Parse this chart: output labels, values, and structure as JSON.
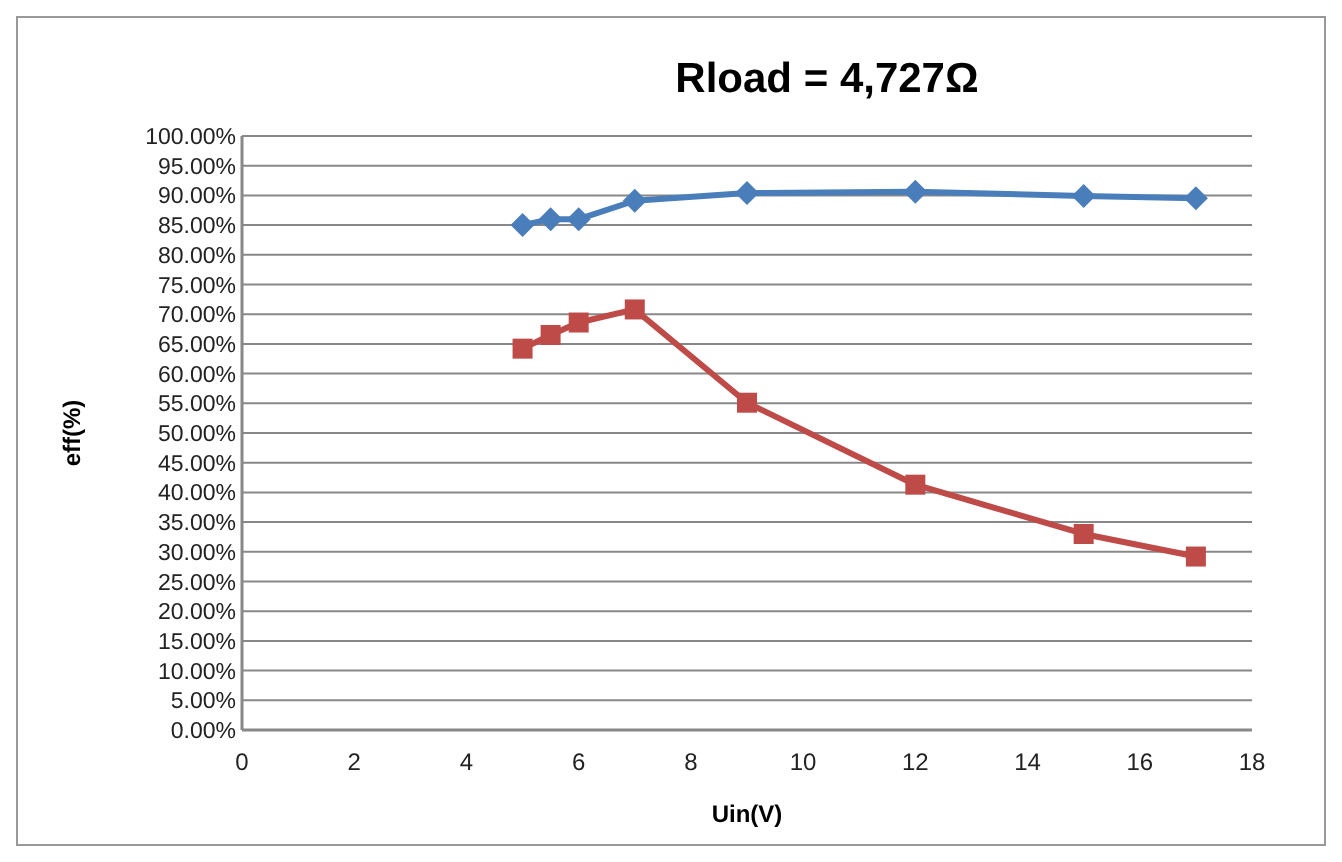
{
  "chart_data": {
    "type": "line",
    "title": "Rload = 4,727Ω",
    "xlabel": "Uin(V)",
    "ylabel": "eff(%)",
    "x": [
      5,
      5.5,
      6,
      7,
      9,
      12,
      15,
      17
    ],
    "series": [
      {
        "color": "#4a7ebb",
        "marker": "diamond",
        "values": [
          85.0,
          86.0,
          86.0,
          89.1,
          90.4,
          90.6,
          89.9,
          89.5
        ]
      },
      {
        "color": "#be4b48",
        "marker": "square",
        "values": [
          64.2,
          66.5,
          68.6,
          70.8,
          55.1,
          41.3,
          33.0,
          29.2
        ]
      }
    ],
    "xlim": [
      0,
      18
    ],
    "xticks": [
      0,
      2,
      4,
      6,
      8,
      10,
      12,
      14,
      16,
      18
    ],
    "ylim": [
      0,
      100
    ],
    "yticks": [
      {
        "value": 0,
        "label": "0.00%"
      },
      {
        "value": 5,
        "label": "5.00%"
      },
      {
        "value": 10,
        "label": "10.00%"
      },
      {
        "value": 15,
        "label": "15.00%"
      },
      {
        "value": 20,
        "label": "20.00%"
      },
      {
        "value": 25,
        "label": "25.00%"
      },
      {
        "value": 30,
        "label": "30.00%"
      },
      {
        "value": 35,
        "label": "35.00%"
      },
      {
        "value": 40,
        "label": "40.00%"
      },
      {
        "value": 45,
        "label": "45.00%"
      },
      {
        "value": 50,
        "label": "50.00%"
      },
      {
        "value": 55,
        "label": "55.00%"
      },
      {
        "value": 60,
        "label": "60.00%"
      },
      {
        "value": 65,
        "label": "65.00%"
      },
      {
        "value": 70,
        "label": "70.00%"
      },
      {
        "value": 75,
        "label": "75.00%"
      },
      {
        "value": 80,
        "label": "80.00%"
      },
      {
        "value": 85,
        "label": "85.00%"
      },
      {
        "value": 90,
        "label": "90.00%"
      },
      {
        "value": 95,
        "label": "95.00%"
      },
      {
        "value": 100,
        "label": "100.00%"
      }
    ],
    "grid": "y",
    "line_style": "solid"
  }
}
